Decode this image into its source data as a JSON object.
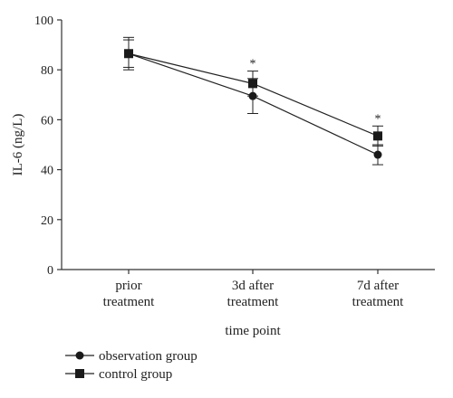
{
  "chart_data": {
    "type": "line",
    "categories": [
      "prior\ntreatment",
      "3d after\ntreatment",
      "7d after\ntreatment"
    ],
    "xlabel": "time point",
    "ylabel": "IL-6 (ng/L)",
    "ylim": [
      0,
      100
    ],
    "yticks": [
      0,
      20,
      40,
      60,
      80,
      100
    ],
    "grid": false,
    "legend_position": "bottom-left",
    "significance_markers": [
      "",
      "*",
      "*"
    ],
    "series": [
      {
        "name": "observation group",
        "marker": "circle",
        "values": [
          86.5,
          69.5,
          46
        ],
        "error": [
          6.5,
          7,
          4
        ]
      },
      {
        "name": "control group",
        "marker": "square",
        "values": [
          86.5,
          74.5,
          53.5
        ],
        "error": [
          5.5,
          5,
          4
        ]
      }
    ]
  }
}
